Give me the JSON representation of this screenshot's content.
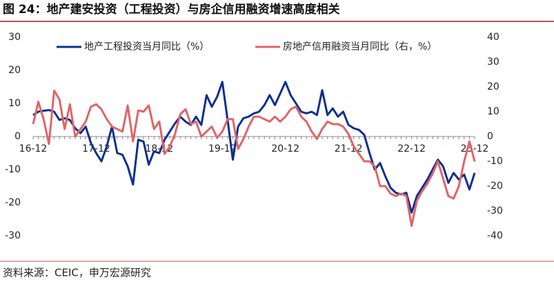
{
  "chart_data": {
    "type": "line",
    "title": "图 24：地产建安投资（工程投资）与房企信用融资增速高度相关",
    "source": "资料来源：CEIC，申万宏源研究",
    "categories": [
      "16-12",
      null,
      null,
      null,
      null,
      null,
      null,
      null,
      null,
      null,
      null,
      null,
      "17-12",
      null,
      null,
      null,
      null,
      null,
      null,
      null,
      null,
      null,
      null,
      null,
      "18-12",
      null,
      null,
      null,
      null,
      null,
      null,
      null,
      null,
      null,
      null,
      null,
      "19-12",
      null,
      null,
      null,
      null,
      null,
      null,
      null,
      null,
      null,
      null,
      null,
      "20-12",
      null,
      null,
      null,
      null,
      null,
      null,
      null,
      null,
      null,
      null,
      null,
      "21-12",
      null,
      null,
      null,
      null,
      null,
      null,
      null,
      null,
      null,
      null,
      null,
      "22-12",
      null,
      null,
      null,
      null,
      null,
      null,
      null,
      null,
      null,
      null,
      null,
      "23-12"
    ],
    "series": [
      {
        "name": "地产工程投资当月同比（%）",
        "color": "#0d2f8f",
        "axis": "y",
        "values": [
          6.5,
          7.5,
          7.8,
          8,
          7.5,
          5,
          5.5,
          5,
          2.5,
          1,
          3,
          -2,
          -5,
          -7.5,
          -3,
          3,
          -5,
          -5.5,
          -9,
          -14.5,
          -1,
          -1.5,
          -8.5,
          -4.5,
          -5,
          -1,
          1.5,
          4,
          6,
          4.5,
          3.5,
          6,
          3.5,
          12.5,
          9,
          12,
          16.5,
          5,
          -7,
          3,
          5.5,
          6,
          7,
          7.5,
          9.5,
          12.5,
          9.5,
          13,
          16.5,
          12.5,
          10,
          7.5,
          7,
          7.5,
          6.5,
          14,
          6.5,
          8.5,
          6,
          7.5,
          3.5,
          2.5,
          2,
          0.5,
          -5,
          -10,
          -8,
          -12,
          -15.5,
          -17,
          -17.5,
          -17,
          -23,
          -18,
          -15.5,
          -13,
          -10,
          -7,
          -9,
          -14,
          -11,
          -13,
          -11.5,
          -16,
          -11
        ]
      },
      {
        "name": "房地产信用融资当月同比（右，%）",
        "color": "#e06468",
        "axis": "y2",
        "values": [
          5,
          14,
          7,
          -3,
          18.5,
          15,
          3,
          13,
          0,
          3,
          6,
          12,
          13,
          11,
          7,
          4,
          3,
          2,
          12.5,
          -2,
          10.5,
          10,
          12.5,
          3,
          6,
          -7,
          -4,
          1,
          9,
          11,
          5,
          6,
          0,
          2,
          4,
          -0.5,
          2,
          7,
          7,
          -5,
          -1,
          4,
          8,
          8,
          7,
          6,
          8,
          6,
          8,
          11,
          12,
          8,
          6,
          2,
          -1,
          3,
          6,
          5,
          5,
          4,
          1,
          -4,
          -7,
          -10,
          -10,
          -12,
          -20,
          -20,
          -23,
          -24,
          -23,
          -24,
          -36,
          -26,
          -22,
          -19,
          -15,
          -10,
          -17,
          -24,
          -25,
          -20,
          -10,
          -2,
          -10
        ]
      }
    ],
    "ylim": [
      -30,
      30
    ],
    "yticks": [
      -30,
      -20,
      -10,
      0,
      10,
      20,
      30
    ],
    "y2lim": [
      -40,
      40
    ],
    "y2ticks": [
      -40,
      -30,
      -20,
      -10,
      0,
      10,
      20,
      30,
      40
    ],
    "legend": "top",
    "grid": false
  }
}
